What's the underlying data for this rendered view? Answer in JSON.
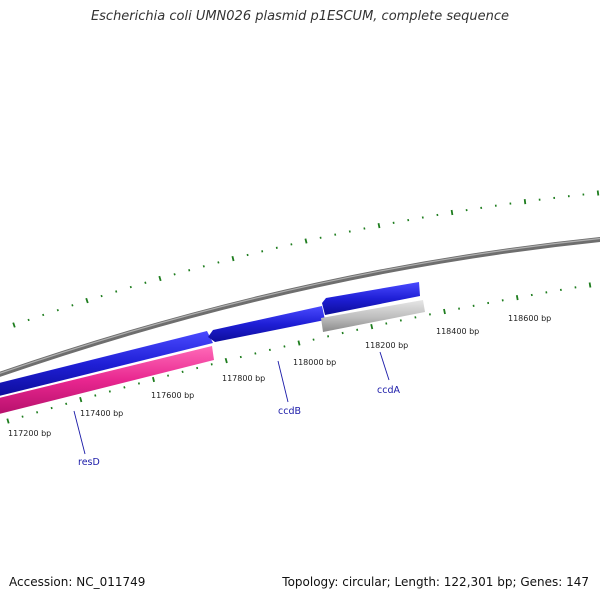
{
  "title": "Escherichia coli UMN026 plasmid p1ESCUM, complete sequence",
  "footer": {
    "accession": "Accession: NC_011749",
    "summary": "Topology: circular; Length: 122,301 bp; Genes: 147"
  },
  "scale_labels": [
    "117200 bp",
    "117400 bp",
    "117600 bp",
    "117800 bp",
    "118000 bp",
    "118200 bp",
    "118400 bp",
    "118600 bp"
  ],
  "genes": [
    {
      "name": "resD",
      "color": "#e8268f"
    },
    {
      "name": "ccdB",
      "color": "#1f1fd6"
    },
    {
      "name": "ccdA",
      "color": "#b5b5b5"
    }
  ],
  "colors": {
    "backbone": "#808080",
    "ticks": "#1e7d1e",
    "forward_genes": "#1f1fd6",
    "reverse_genes": "#e8268f",
    "other_genes": "#b5b5b5"
  }
}
